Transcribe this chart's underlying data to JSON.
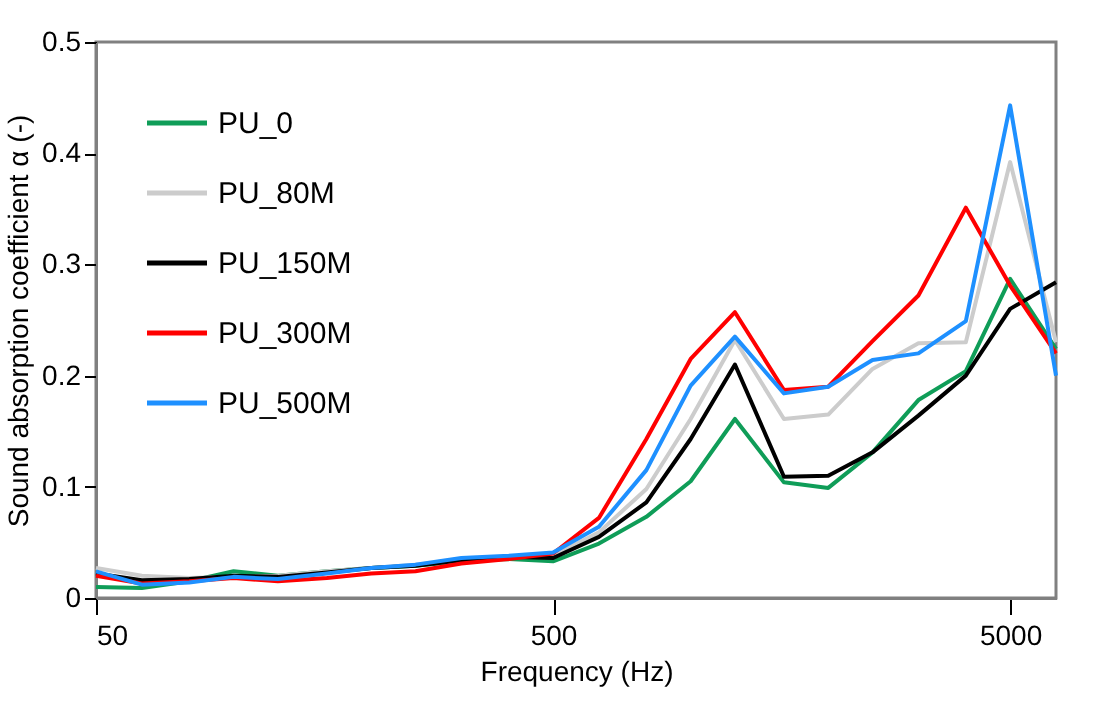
{
  "chart_data": {
    "type": "line",
    "xlabel": "Frequency (Hz)",
    "ylabel": "Sound absorption coefficient α (-)",
    "x": [
      50,
      63,
      80,
      100,
      125,
      160,
      200,
      250,
      315,
      400,
      500,
      630,
      800,
      1000,
      1250,
      1600,
      2000,
      2500,
      3150,
      4000,
      5000,
      6300
    ],
    "series": [
      {
        "name": "PU_0",
        "color": "#0f9d58",
        "values": [
          0.01,
          0.009,
          0.015,
          0.024,
          0.02,
          0.024,
          0.027,
          0.029,
          0.033,
          0.035,
          0.033,
          0.049,
          0.073,
          0.105,
          0.161,
          0.104,
          0.099,
          0.131,
          0.178,
          0.204,
          0.287,
          0.224
        ]
      },
      {
        "name": "PU_80M",
        "color": "#cccccc",
        "values": [
          0.027,
          0.02,
          0.018,
          0.019,
          0.02,
          0.024,
          0.027,
          0.03,
          0.034,
          0.037,
          0.038,
          0.059,
          0.098,
          0.161,
          0.232,
          0.161,
          0.165,
          0.206,
          0.229,
          0.23,
          0.392,
          0.23
        ]
      },
      {
        "name": "PU_150M",
        "color": "#000000",
        "values": [
          0.022,
          0.016,
          0.017,
          0.02,
          0.019,
          0.023,
          0.027,
          0.029,
          0.034,
          0.037,
          0.036,
          0.055,
          0.086,
          0.143,
          0.21,
          0.109,
          0.11,
          0.131,
          0.164,
          0.2,
          0.26,
          0.284
        ]
      },
      {
        "name": "PU_300M",
        "color": "#ff0000",
        "values": [
          0.02,
          0.013,
          0.015,
          0.018,
          0.015,
          0.018,
          0.022,
          0.024,
          0.031,
          0.035,
          0.04,
          0.072,
          0.143,
          0.215,
          0.257,
          0.187,
          0.19,
          0.231,
          0.272,
          0.351,
          0.281,
          0.22
        ]
      },
      {
        "name": "PU_500M",
        "color": "#1e90ff",
        "values": [
          0.024,
          0.012,
          0.014,
          0.019,
          0.017,
          0.022,
          0.027,
          0.03,
          0.036,
          0.038,
          0.041,
          0.064,
          0.115,
          0.191,
          0.235,
          0.184,
          0.19,
          0.214,
          0.22,
          0.249,
          0.443,
          0.2
        ]
      }
    ],
    "xlim": [
      50,
      6300
    ],
    "xticks": [
      50,
      500,
      5000
    ],
    "ylim": [
      0,
      0.5
    ],
    "yticks": [
      0,
      0.1,
      0.2,
      0.3,
      0.4,
      0.5
    ],
    "log": "x",
    "grid": false,
    "legend": "top left",
    "line_style": "solid",
    "marker": "none"
  }
}
